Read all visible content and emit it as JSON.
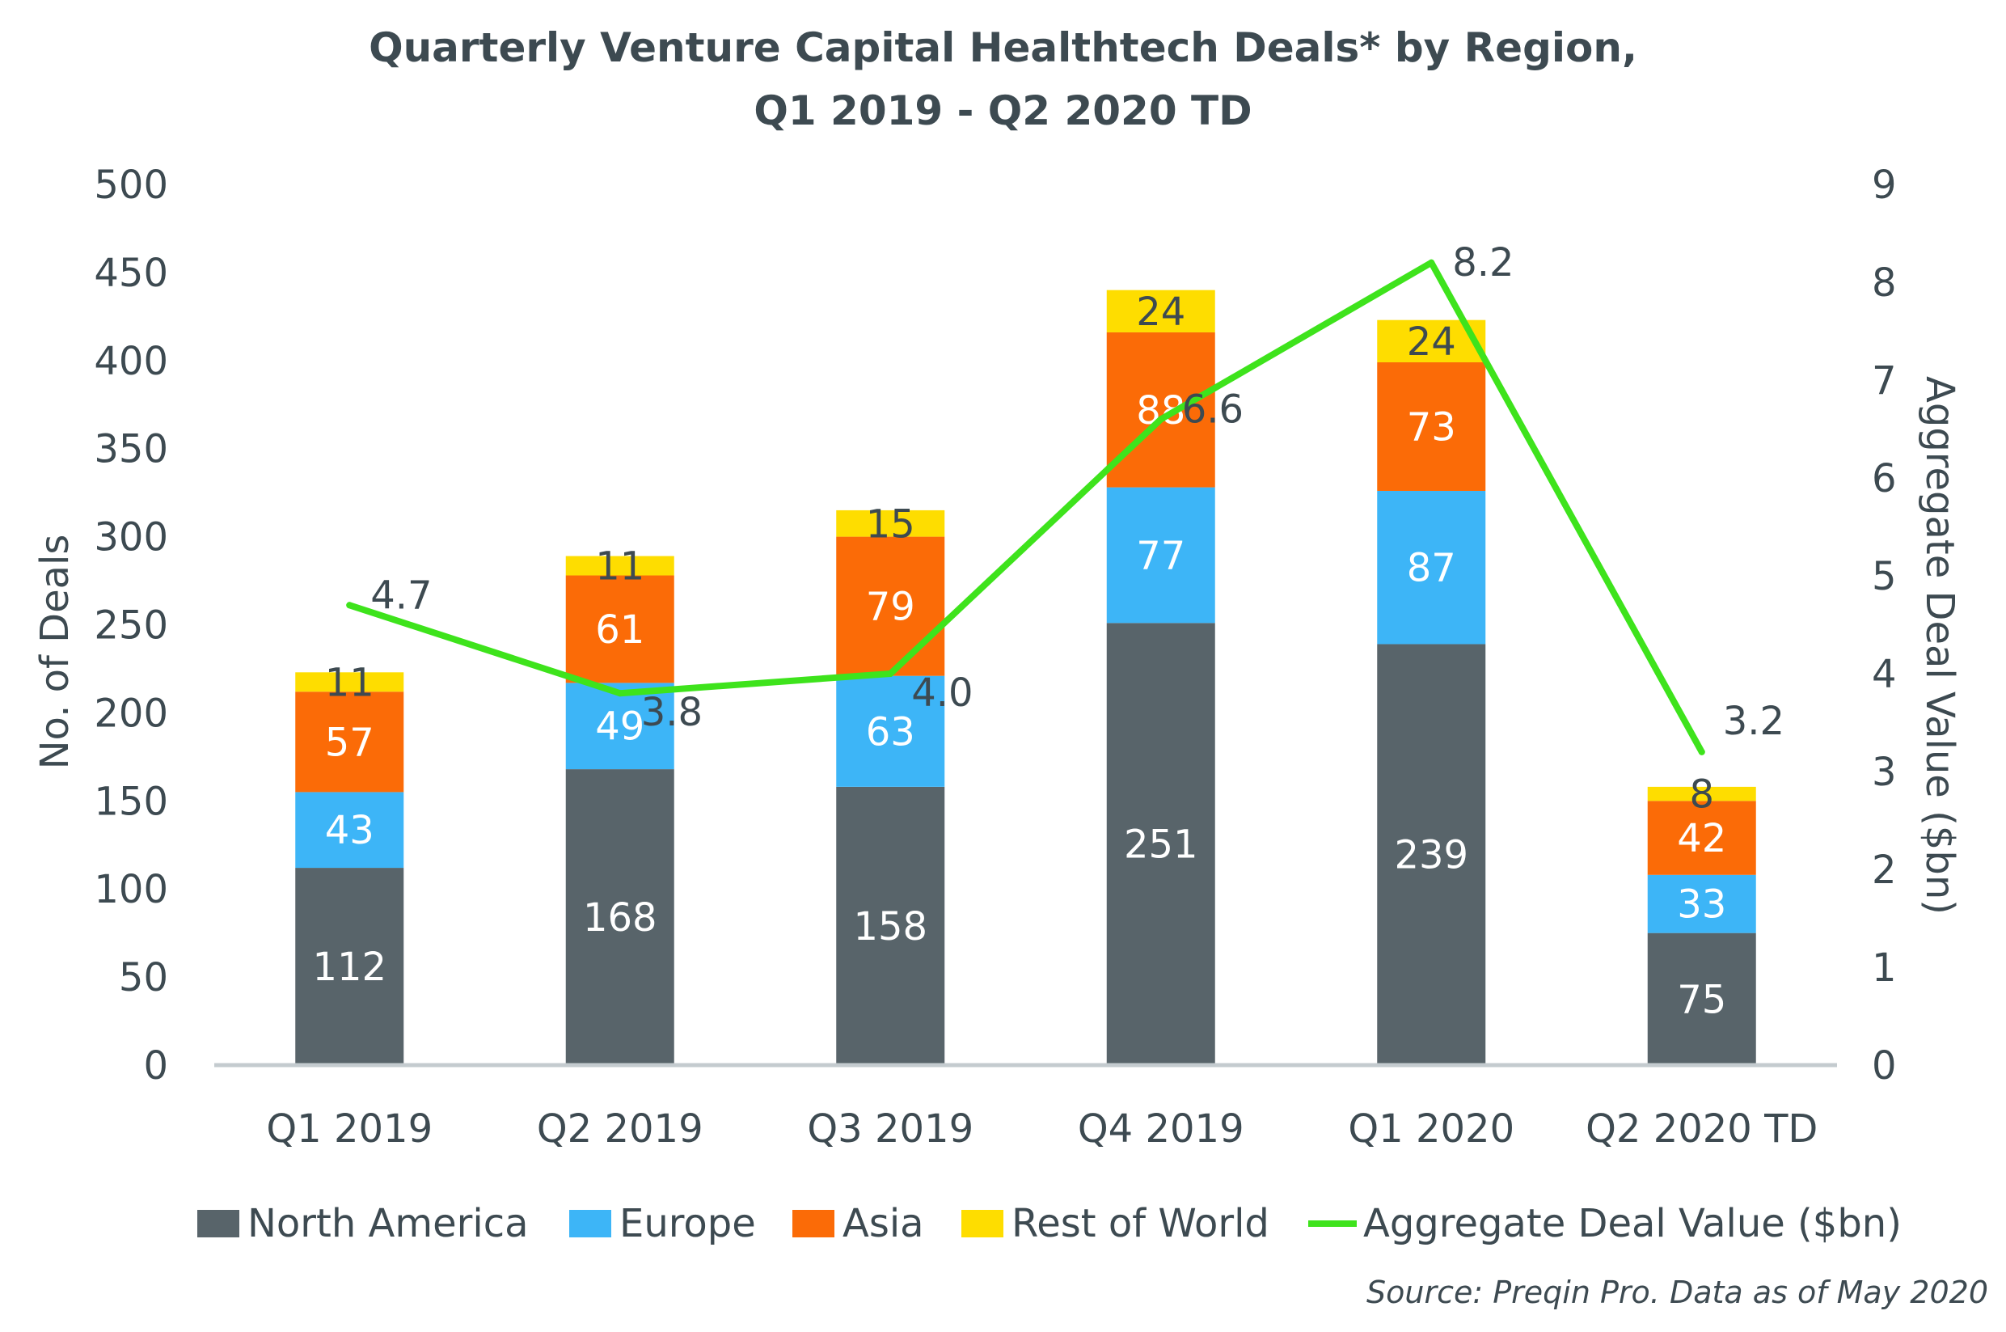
{
  "title_line1": "Quarterly Venture Capital Healthtech Deals* by Region,",
  "title_line2": "Q1 2019 - Q2 2020 TD",
  "source": "Source: Preqin Pro. Data as of May 2020",
  "chart_data": {
    "type": "bar",
    "stacked": true,
    "categories": [
      "Q1 2019",
      "Q2 2019",
      "Q3 2019",
      "Q4 2019",
      "Q1 2020",
      "Q2 2020 TD"
    ],
    "series": [
      {
        "name": "North America",
        "color": "#58646a",
        "label_color": "#ffffff",
        "values": [
          112,
          168,
          158,
          251,
          239,
          75
        ]
      },
      {
        "name": "Europe",
        "color": "#3db5f7",
        "label_color": "#ffffff",
        "values": [
          43,
          49,
          63,
          77,
          87,
          33
        ]
      },
      {
        "name": "Asia",
        "color": "#fb6b07",
        "label_color": "#ffffff",
        "values": [
          57,
          61,
          79,
          88,
          73,
          42
        ]
      },
      {
        "name": "Rest of World",
        "color": "#fedd00",
        "label_color": "#3d4a51",
        "values": [
          11,
          11,
          15,
          24,
          24,
          8
        ]
      }
    ],
    "line_series": {
      "name": "Aggregate Deal Value ($bn)",
      "color": "#3ee31c",
      "axis": "right",
      "values": [
        4.7,
        3.8,
        4.0,
        6.6,
        8.2,
        3.2
      ],
      "labels": [
        "4.7",
        "3.8",
        "4.0",
        "6.6",
        "8.2",
        "3.2"
      ]
    },
    "ylabel": "No. of Deals",
    "y2label": "Aggregate Deal Value ($bn)",
    "ylim": [
      0,
      500
    ],
    "y2lim": [
      0,
      9
    ],
    "yticks": [
      "0",
      "50",
      "100",
      "150",
      "200",
      "250",
      "300",
      "350",
      "400",
      "450",
      "500"
    ],
    "y2ticks": [
      "0",
      "1",
      "2",
      "3",
      "4",
      "5",
      "6",
      "7",
      "8",
      "9"
    ],
    "grid": false,
    "legend_position": "bottom"
  }
}
